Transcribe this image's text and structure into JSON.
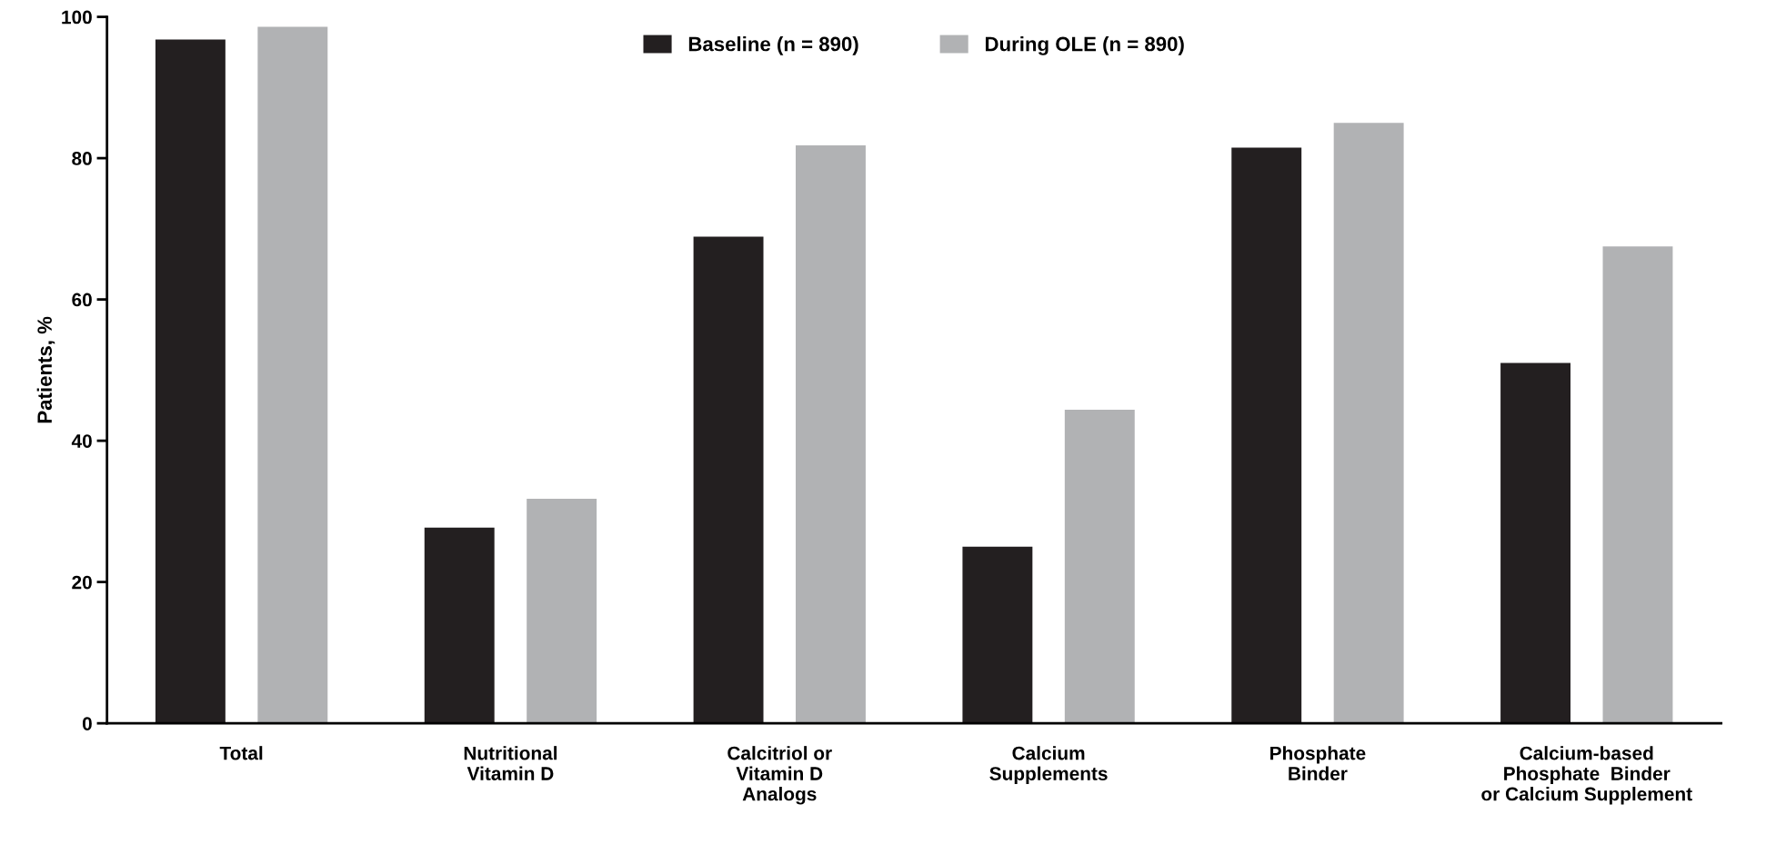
{
  "chart_data": {
    "type": "bar",
    "ylabel": "Patients, %",
    "categories": [
      "Total",
      "Nutritional\nVitamin D",
      "Calcitriol or\nVitamin D\nAnalogs",
      "Calcium\nSupplements",
      "Phosphate\nBinder",
      "Calcium-based\nPhosphate  Binder\nor Calcium Supplement"
    ],
    "series": [
      {
        "name": "Baseline (n = 890)",
        "color": "#231f20",
        "values": [
          96.8,
          27.7,
          68.9,
          25.0,
          81.5,
          51.0
        ]
      },
      {
        "name": "During OLE (n = 890)",
        "color": "#b1b2b4",
        "values": [
          98.6,
          31.8,
          81.8,
          44.4,
          85.0,
          67.5
        ]
      }
    ],
    "ylim": [
      0,
      100
    ],
    "yticks": [
      0,
      20,
      40,
      60,
      80,
      100
    ],
    "grid": false,
    "legend": "top"
  }
}
